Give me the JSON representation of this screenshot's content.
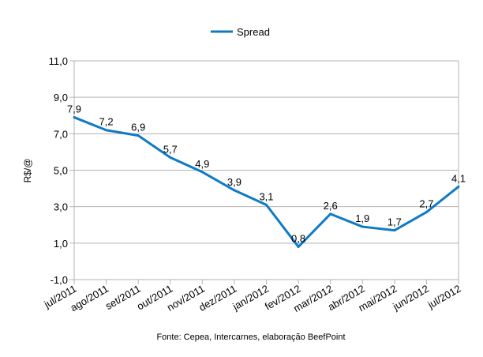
{
  "chart_data": {
    "type": "line",
    "title": "",
    "xlabel": "",
    "ylabel": "R$/@",
    "ylim": [
      -1.0,
      11.0
    ],
    "yticks": [
      "-1,0",
      "1,0",
      "3,0",
      "5,0",
      "7,0",
      "9,0",
      "11,0"
    ],
    "ytick_values": [
      -1,
      1,
      3,
      5,
      7,
      9,
      11
    ],
    "grid": true,
    "legend_position": "top-center",
    "categories": [
      "jul/2011",
      "ago/2011",
      "set/2011",
      "out/2011",
      "nov/2011",
      "dez/2011",
      "jan/2012",
      "fev/2012",
      "mar/2012",
      "abr/2012",
      "mai/2012",
      "jun/2012",
      "jul/2012"
    ],
    "series": [
      {
        "name": "Spread",
        "color": "#0f7ac6",
        "values": [
          7.9,
          7.2,
          6.9,
          5.7,
          4.9,
          3.9,
          3.1,
          0.8,
          2.6,
          1.9,
          1.7,
          2.7,
          4.1
        ],
        "labels": [
          "7,9",
          "7,2",
          "6,9",
          "5,7",
          "4,9",
          "3,9",
          "3,1",
          "0,8",
          "2,6",
          "1,9",
          "1,7",
          "2,7",
          "4,1"
        ]
      }
    ],
    "source_note": "Fonte: Cepea, Intercarnes, elaboração BeefPoint"
  }
}
